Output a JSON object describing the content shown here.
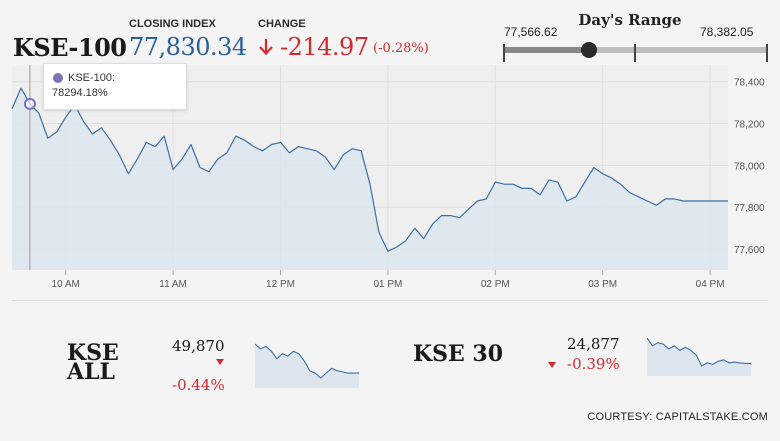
{
  "header": {
    "index_name": "KSE-100",
    "closing_label": "CLOSING INDEX",
    "closing_value": "77,830.34",
    "change_label": "CHANGE",
    "change_value": "-214.97",
    "change_pct": "(-0.28%)"
  },
  "range": {
    "title": "Day's Range",
    "low_label": "77,566.62",
    "high_label": "78,382.05",
    "low": 77566.62,
    "high": 78382.05,
    "current": 77830.34
  },
  "tooltip": {
    "series": "KSE-100:",
    "value": "78294.18%"
  },
  "colors": {
    "line": "#3b6fa3",
    "fill": "#dde6ef",
    "down": "#d12a2f",
    "value_blue": "#2b6199",
    "marker": "#7b73b8"
  },
  "chart_data": [
    {
      "type": "area",
      "series": [
        {
          "name": "KSE-100",
          "x": [
            "09:30",
            "09:35",
            "09:40",
            "09:45",
            "09:50",
            "09:55",
            "10:00",
            "10:05",
            "10:10",
            "10:15",
            "10:20",
            "10:25",
            "10:30",
            "10:35",
            "10:40",
            "10:45",
            "10:50",
            "10:55",
            "11:00",
            "11:05",
            "11:10",
            "11:15",
            "11:20",
            "11:25",
            "11:30",
            "11:35",
            "11:40",
            "11:45",
            "11:50",
            "11:55",
            "12:00",
            "12:05",
            "12:10",
            "12:15",
            "12:20",
            "12:25",
            "12:30",
            "12:35",
            "12:40",
            "12:45",
            "12:50",
            "12:55",
            "13:00",
            "13:05",
            "13:10",
            "13:15",
            "13:20",
            "13:25",
            "13:30",
            "13:35",
            "13:40",
            "13:45",
            "13:50",
            "13:55",
            "14:00",
            "14:05",
            "14:10",
            "14:15",
            "14:20",
            "14:25",
            "14:30",
            "14:35",
            "14:40",
            "14:45",
            "14:50",
            "14:55",
            "15:00",
            "15:05",
            "15:10",
            "15:15",
            "15:20",
            "15:25",
            "15:30",
            "15:35",
            "15:40",
            "15:45",
            "15:50",
            "15:55",
            "16:00",
            "16:05",
            "16:10"
          ],
          "values": [
            78270,
            78370,
            78294,
            78250,
            78130,
            78160,
            78230,
            78290,
            78210,
            78150,
            78180,
            78120,
            78050,
            77960,
            78030,
            78110,
            78090,
            78140,
            77980,
            78030,
            78100,
            77990,
            77970,
            78030,
            78060,
            78140,
            78120,
            78090,
            78070,
            78100,
            78110,
            78060,
            78090,
            78080,
            78070,
            78040,
            77980,
            78050,
            78080,
            78070,
            77910,
            77680,
            77590,
            77610,
            77640,
            77700,
            77650,
            77720,
            77760,
            77760,
            77750,
            77790,
            77830,
            77840,
            77920,
            77910,
            77910,
            77890,
            77890,
            77860,
            77930,
            77920,
            77830,
            77850,
            77920,
            77990,
            77960,
            77940,
            77910,
            77870,
            77850,
            77830,
            77810,
            77840,
            77840,
            77830,
            77830,
            77830,
            77830,
            77830,
            77830
          ]
        }
      ],
      "x_ticks": [
        "10 AM",
        "11 AM",
        "12 PM",
        "01 PM",
        "02 PM",
        "03 PM",
        "04 PM"
      ],
      "y_ticks": [
        "78,400",
        "78,200",
        "78,000",
        "77,800",
        "77,600"
      ],
      "ylim": [
        77500,
        78480
      ],
      "grid": true
    },
    {
      "type": "area",
      "series": [
        {
          "name": "KSE ALL",
          "values": [
            49980,
            49960,
            49970,
            49950,
            49920,
            49940,
            49930,
            49950,
            49940,
            49910,
            49870,
            49860,
            49840,
            49860,
            49880,
            49870,
            49865,
            49860,
            49860,
            49860
          ]
        }
      ]
    },
    {
      "type": "area",
      "series": [
        {
          "name": "KSE 30",
          "values": [
            25040,
            24990,
            25010,
            25000,
            24970,
            24990,
            24960,
            24980,
            24960,
            24930,
            24860,
            24880,
            24870,
            24890,
            24900,
            24880,
            24885,
            24880,
            24877,
            24877
          ]
        }
      ]
    }
  ],
  "kse_all": {
    "name_line1": "KSE",
    "name_line2": "ALL",
    "value": "49,870",
    "pct": "-0.44%"
  },
  "kse30": {
    "name": "KSE 30",
    "value": "24,877",
    "pct": "-0.39%"
  },
  "courtesy": "COURTESY: CAPITALSTAKE.COM"
}
